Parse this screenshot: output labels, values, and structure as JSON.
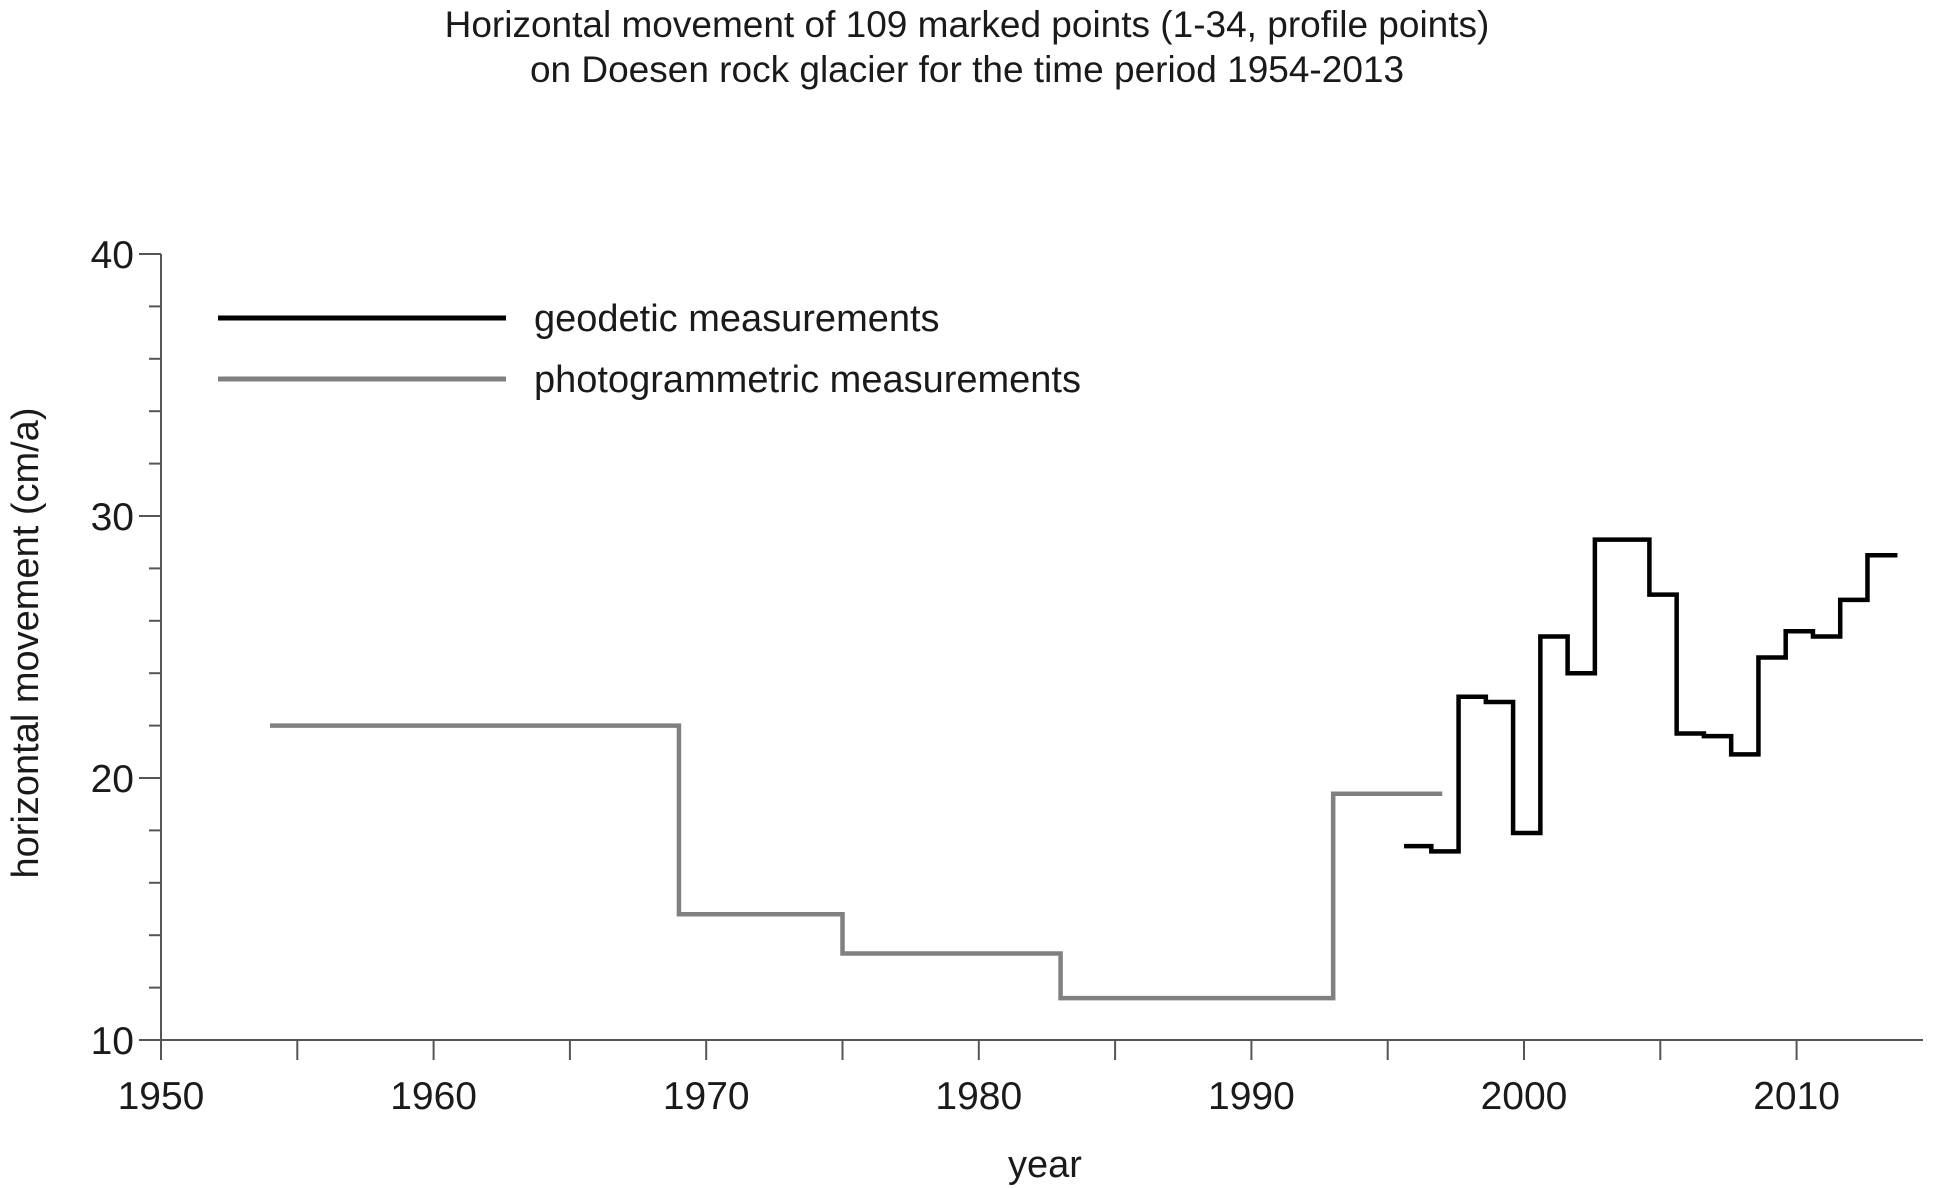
{
  "chart_data": {
    "type": "line",
    "title": [
      "Horizontal movement of 109 marked points (1-34, profile points)",
      "on Doesen rock glacier for the time period 1954-2013"
    ],
    "xlabel": "year",
    "ylabel": "horizontal movement (cm/a)",
    "xlim": [
      1950,
      2014
    ],
    "ylim": [
      10,
      40
    ],
    "x_ticks": [
      1950,
      1960,
      1970,
      1980,
      1990,
      2000,
      2010
    ],
    "x_minor_ticks": [
      1955,
      1965,
      1975,
      1985,
      1995,
      2005
    ],
    "y_ticks": [
      10,
      20,
      30,
      40
    ],
    "y_minor_step": 2,
    "grid": false,
    "legend_position": "top-left",
    "step": true,
    "series": [
      {
        "name": "geodetic measurements",
        "color": "#000000",
        "segments": [
          {
            "x0": 1995.6,
            "x1": 1996.6,
            "y": 17.4
          },
          {
            "x0": 1996.6,
            "x1": 1997.6,
            "y": 17.2
          },
          {
            "x0": 1997.6,
            "x1": 1998.6,
            "y": 23.1
          },
          {
            "x0": 1998.6,
            "x1": 1999.6,
            "y": 22.9
          },
          {
            "x0": 1999.6,
            "x1": 2000.6,
            "y": 17.9
          },
          {
            "x0": 2000.6,
            "x1": 2001.6,
            "y": 25.4
          },
          {
            "x0": 2001.6,
            "x1": 2002.6,
            "y": 24.0
          },
          {
            "x0": 2002.6,
            "x1": 2004.6,
            "y": 29.1
          },
          {
            "x0": 2004.6,
            "x1": 2005.6,
            "y": 27.0
          },
          {
            "x0": 2005.6,
            "x1": 2006.6,
            "y": 21.7
          },
          {
            "x0": 2006.6,
            "x1": 2007.6,
            "y": 21.6
          },
          {
            "x0": 2007.6,
            "x1": 2008.6,
            "y": 20.9
          },
          {
            "x0": 2008.6,
            "x1": 2009.6,
            "y": 24.6
          },
          {
            "x0": 2009.6,
            "x1": 2010.6,
            "y": 25.6
          },
          {
            "x0": 2010.6,
            "x1": 2011.6,
            "y": 25.4
          },
          {
            "x0": 2011.6,
            "x1": 2012.6,
            "y": 26.8
          },
          {
            "x0": 2012.6,
            "x1": 2013.7,
            "y": 28.5
          }
        ]
      },
      {
        "name": "photogrammetric measurements",
        "color": "#808080",
        "segments": [
          {
            "x0": 1954,
            "x1": 1969,
            "y": 22.0
          },
          {
            "x0": 1969,
            "x1": 1975,
            "y": 14.8
          },
          {
            "x0": 1975,
            "x1": 1983,
            "y": 13.3
          },
          {
            "x0": 1983,
            "x1": 1993,
            "y": 11.6
          },
          {
            "x0": 1993,
            "x1": 1997,
            "y": 19.4
          }
        ]
      }
    ]
  }
}
